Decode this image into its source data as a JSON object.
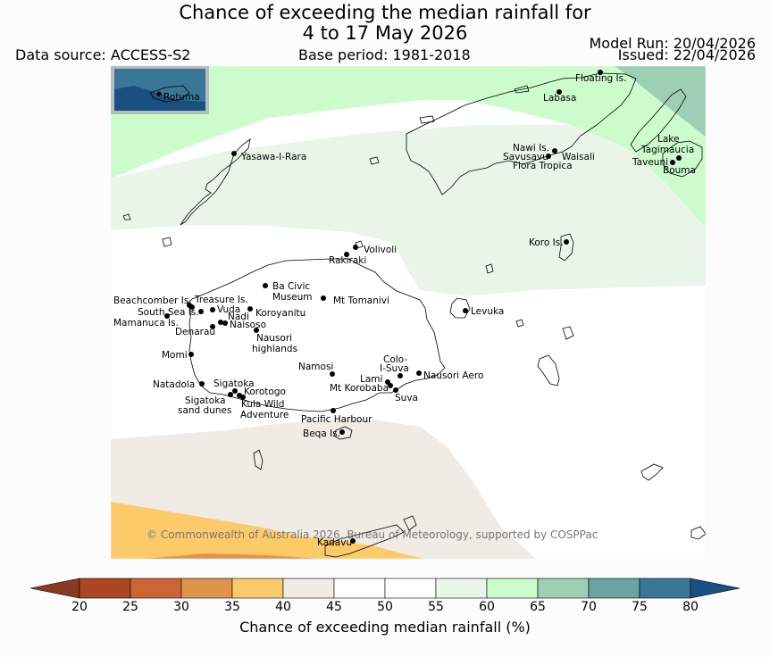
{
  "title_line1": "Chance of exceeding the median rainfall for",
  "title_line2": "4 to 17 May 2026",
  "data_source": "Data source: ACCESS-S2",
  "base_period": "Base period: 1981-2018",
  "model_run": "Model Run: 20/04/2026",
  "issued": "Issued: 22/04/2026",
  "copyright": "© Commonwealth of Australia 2026, Bureau of Meteorology, supported by COSPPac",
  "inset_label": "Rotuma",
  "colorbar": {
    "title": "Chance of exceeding median rainfall (%)",
    "ticks": [
      "20",
      "25",
      "30",
      "35",
      "40",
      "45",
      "50",
      "55",
      "60",
      "65",
      "70",
      "75",
      "80"
    ],
    "colors": [
      "#ad4623",
      "#cc6534",
      "#e1944b",
      "#fdca6a",
      "#f0ebe4",
      "#ffffff",
      "#ffffff",
      "#eaf5ea",
      "#ccfccc",
      "#9ccfb4",
      "#6ba3a2",
      "#3a7696"
    ],
    "under_color": "#8a3a22",
    "over_color": "#1a5080"
  },
  "places": [
    {
      "name": "Floating Is."
    },
    {
      "name": "Labasa"
    },
    {
      "name": "Yasawa-I-Rara"
    },
    {
      "name": "Nawi Is."
    },
    {
      "name": "Savusavu"
    },
    {
      "name": "Waisali"
    },
    {
      "name": "Flora Tropica"
    },
    {
      "name": "Lake"
    },
    {
      "name": "Tagimaucia"
    },
    {
      "name": "Taveuni"
    },
    {
      "name": "Bouma"
    },
    {
      "name": "Koro Is."
    },
    {
      "name": "Volivoli"
    },
    {
      "name": "Rakiraki"
    },
    {
      "name": "Ba Civic"
    },
    {
      "name": "Museum"
    },
    {
      "name": "Mt Tomanivi"
    },
    {
      "name": "Beachcomber Is."
    },
    {
      "name": "Treasure Is."
    },
    {
      "name": "South Sea Is."
    },
    {
      "name": "Vuda"
    },
    {
      "name": "Koroyanitu"
    },
    {
      "name": "Nadi"
    },
    {
      "name": "Mamanuca Is."
    },
    {
      "name": "Naisoso"
    },
    {
      "name": "Denarau"
    },
    {
      "name": "Nausori"
    },
    {
      "name": "highlands"
    },
    {
      "name": "Levuka"
    },
    {
      "name": "Momi"
    },
    {
      "name": "Colo-"
    },
    {
      "name": "I-Suva"
    },
    {
      "name": "Namosi"
    },
    {
      "name": "Nausori Aero"
    },
    {
      "name": "Lami"
    },
    {
      "name": "Natadola"
    },
    {
      "name": "Sigatoka"
    },
    {
      "name": "Mt Korobaba"
    },
    {
      "name": "Suva"
    },
    {
      "name": "Korotogo"
    },
    {
      "name": "Sigatoka"
    },
    {
      "name": "sand dunes"
    },
    {
      "name": "Kula Wild"
    },
    {
      "name": "Adventure"
    },
    {
      "name": "Pacific Harbour"
    },
    {
      "name": "Beqa Is."
    },
    {
      "name": "Kadavu"
    }
  ]
}
